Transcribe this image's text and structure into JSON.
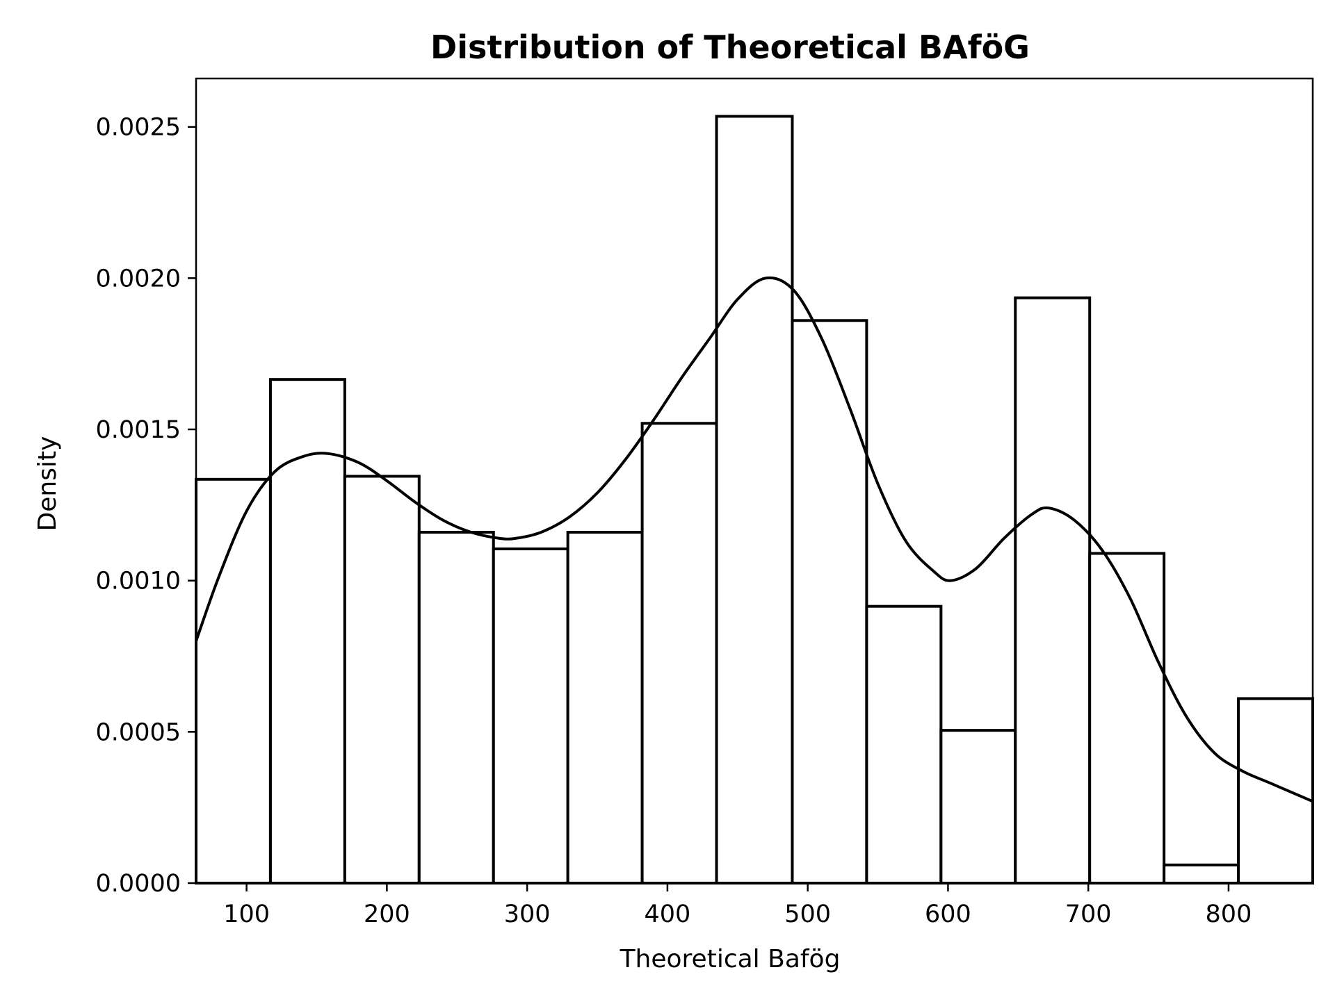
{
  "chart_data": {
    "type": "bar",
    "title": "Distribution of Theoretical BAföG",
    "xlabel": "Theoretical Bafög",
    "ylabel": "Density",
    "xlim": [
      64,
      860
    ],
    "ylim": [
      0,
      0.00266
    ],
    "x_ticks": [
      100,
      200,
      300,
      400,
      500,
      600,
      700,
      800
    ],
    "x_tick_labels": [
      "100",
      "200",
      "300",
      "400",
      "500",
      "600",
      "700",
      "800"
    ],
    "y_ticks": [
      0,
      0.0005,
      0.001,
      0.0015,
      0.002,
      0.0025
    ],
    "y_tick_labels": [
      "0.0000",
      "0.0005",
      "0.0010",
      "0.0015",
      "0.0020",
      "0.0025"
    ],
    "grid": false,
    "colors": {
      "bar_fill": "#ffffff",
      "bar_edge": "#000000",
      "kde_line": "#000000"
    },
    "bins": [
      {
        "x0": 64,
        "x1": 117,
        "density": 0.001335
      },
      {
        "x0": 117,
        "x1": 170,
        "density": 0.001665
      },
      {
        "x0": 170,
        "x1": 223,
        "density": 0.001345
      },
      {
        "x0": 223,
        "x1": 276,
        "density": 0.00116
      },
      {
        "x0": 276,
        "x1": 329,
        "density": 0.001105
      },
      {
        "x0": 329,
        "x1": 382,
        "density": 0.00116
      },
      {
        "x0": 382,
        "x1": 435,
        "density": 0.00152
      },
      {
        "x0": 435,
        "x1": 489,
        "density": 0.002535
      },
      {
        "x0": 489,
        "x1": 542,
        "density": 0.00186
      },
      {
        "x0": 542,
        "x1": 595,
        "density": 0.000915
      },
      {
        "x0": 595,
        "x1": 648,
        "density": 0.000505
      },
      {
        "x0": 648,
        "x1": 701,
        "density": 0.001935
      },
      {
        "x0": 701,
        "x1": 754,
        "density": 0.00109
      },
      {
        "x0": 754,
        "x1": 807,
        "density": 6e-05
      },
      {
        "x0": 807,
        "x1": 860,
        "density": 0.00061
      }
    ],
    "kde": {
      "x": [
        64,
        80,
        100,
        120,
        140,
        158,
        180,
        200,
        220,
        240,
        260,
        280,
        292,
        310,
        330,
        350,
        370,
        390,
        410,
        430,
        450,
        470,
        490,
        510,
        530,
        550,
        570,
        590,
        602,
        620,
        640,
        660,
        672,
        690,
        710,
        730,
        750,
        770,
        790,
        810,
        830,
        860
      ],
      "y": [
        0.0008,
        0.00101,
        0.00123,
        0.00136,
        0.00141,
        0.00142,
        0.00139,
        0.00133,
        0.00126,
        0.0012,
        0.00116,
        0.00114,
        0.00114,
        0.00116,
        0.00121,
        0.00129,
        0.0014,
        0.00153,
        0.00167,
        0.0018,
        0.00193,
        0.002,
        0.00196,
        0.0018,
        0.00157,
        0.00132,
        0.00113,
        0.00103,
        0.001,
        0.00104,
        0.00114,
        0.00122,
        0.00124,
        0.0012,
        0.0011,
        0.00094,
        0.00073,
        0.00055,
        0.00043,
        0.00037,
        0.00033,
        0.00027
      ]
    }
  }
}
